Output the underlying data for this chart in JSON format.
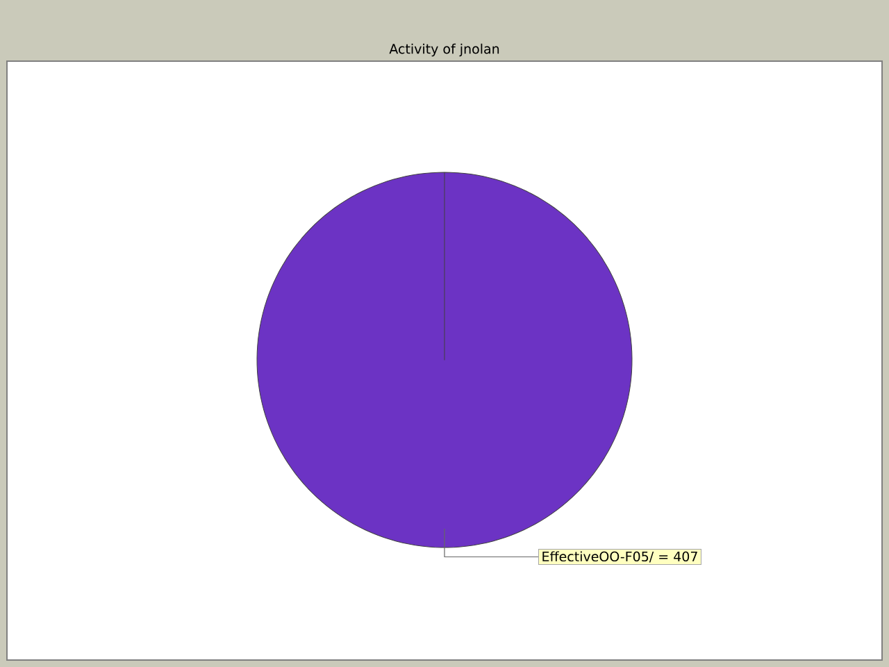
{
  "chart_data": {
    "type": "pie",
    "subtitle": "Activity of jnolan",
    "categories": [
      "EffectiveOO-F05/"
    ],
    "values": [
      407
    ],
    "colors": [
      "#6c33c4"
    ],
    "data_labels": true,
    "annotations": [
      "="
    ]
  }
}
